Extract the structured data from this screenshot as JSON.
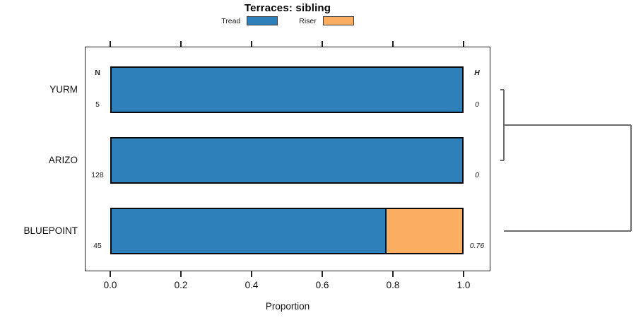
{
  "title": "Terraces: sibling",
  "legend": {
    "items": [
      {
        "label": "Tread",
        "color": "#2d80ba"
      },
      {
        "label": "Riser",
        "color": "#fbad61"
      }
    ]
  },
  "chart_data": {
    "type": "bar",
    "orientation": "horizontal",
    "stacked": true,
    "title": "Terraces: sibling",
    "xlabel": "Proportion",
    "xlim": [
      0,
      1
    ],
    "x_ticks": [
      "0.0",
      "0.2",
      "0.4",
      "0.6",
      "0.8",
      "1.0"
    ],
    "x_tick_values": [
      0,
      0.2,
      0.4,
      0.6,
      0.8,
      1.0
    ],
    "grid": false,
    "legend_position": "top",
    "categories": [
      "YURM",
      "ARIZO",
      "BLUEPOINT"
    ],
    "series": [
      {
        "name": "Tread",
        "color": "#2d80ba",
        "values": [
          1.0,
          1.0,
          0.78
        ]
      },
      {
        "name": "Riser",
        "color": "#fbad61",
        "values": [
          0.0,
          0.0,
          0.22
        ]
      }
    ],
    "columns": {
      "n": {
        "header": "N",
        "values": [
          "5",
          "128",
          "45"
        ]
      },
      "h": {
        "header": "H",
        "values": [
          "0",
          "0",
          "0.76"
        ]
      }
    },
    "dendrogram": {
      "height_max": 0.76,
      "line_color": "#6b6b6b",
      "merges": [
        {
          "a": "YURM",
          "b": "ARIZO",
          "height": 0
        },
        {
          "a": "YURM+ARIZO",
          "b": "BLUEPOINT",
          "height": 0.76
        }
      ],
      "segments": [
        {
          "h1": 0,
          "r1": 0,
          "h2": 0,
          "r2": 1
        },
        {
          "h1": 0,
          "r1": 0.5,
          "h2": 0.76,
          "r2": 0.5
        },
        {
          "h1": 0.76,
          "r1": 0.5,
          "h2": 0.76,
          "r2": 2
        },
        {
          "h1": 0,
          "r1": 2,
          "h2": 0.76,
          "r2": 2
        }
      ]
    }
  }
}
